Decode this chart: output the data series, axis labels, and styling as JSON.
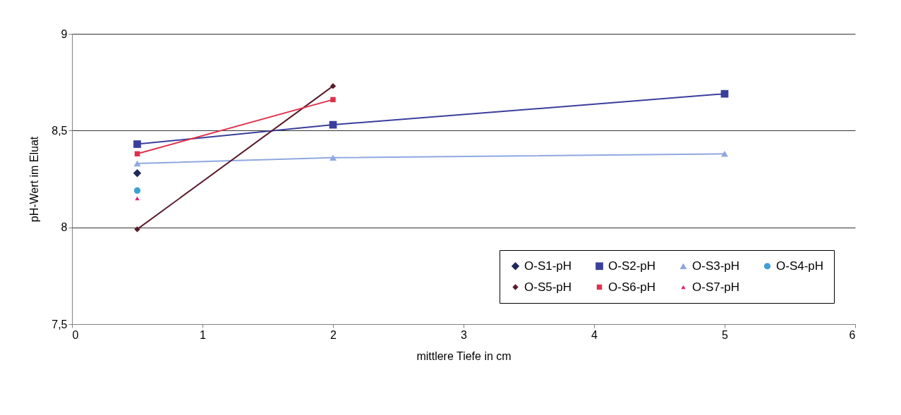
{
  "chart_data": {
    "type": "line",
    "xlabel": "mittlere Tiefe in cm",
    "ylabel": "pH-Wert im Eluat",
    "xlim": [
      0,
      6
    ],
    "xticks": [
      0,
      1,
      2,
      3,
      4,
      5,
      6
    ],
    "ylim": [
      7.5,
      9
    ],
    "yticks": [
      {
        "value": 7.5,
        "label": "7,5"
      },
      {
        "value": 8,
        "label": "8"
      },
      {
        "value": 8.5,
        "label": "8,5"
      },
      {
        "value": 9,
        "label": "9"
      }
    ],
    "grid": "y",
    "legend": "bottom right",
    "series": [
      {
        "name": "O-S1-pH",
        "type": "scatter",
        "marker": "diamond",
        "color": "#1f2a5a",
        "x": [
          0.5
        ],
        "values": [
          8.28
        ]
      },
      {
        "name": "O-S2-pH",
        "type": "line",
        "marker": "square",
        "color": "#3a3f9c",
        "x": [
          0.5,
          2,
          5
        ],
        "values": [
          8.43,
          8.53,
          8.69
        ]
      },
      {
        "name": "O-S3-pH",
        "type": "line",
        "marker": "triangle",
        "color": "#8fa8e0",
        "x": [
          0.5,
          2,
          5
        ],
        "values": [
          8.33,
          8.36,
          8.38
        ]
      },
      {
        "name": "O-S4-pH",
        "type": "scatter",
        "marker": "circle",
        "color": "#3fa0d8",
        "x": [
          0.5
        ],
        "values": [
          8.19
        ]
      },
      {
        "name": "O-S5-pH",
        "type": "line",
        "marker": "diamond",
        "color": "#5a1a2a",
        "x": [
          0.5,
          2
        ],
        "values": [
          7.99,
          8.73
        ]
      },
      {
        "name": "O-S6-pH",
        "type": "line",
        "marker": "square",
        "color": "#e0304a",
        "x": [
          0.5,
          2
        ],
        "values": [
          8.38,
          8.66
        ]
      },
      {
        "name": "O-S7-pH",
        "type": "scatter",
        "marker": "triangle",
        "color": "#e0207a",
        "x": [
          0.5
        ],
        "values": [
          8.15
        ]
      }
    ]
  }
}
